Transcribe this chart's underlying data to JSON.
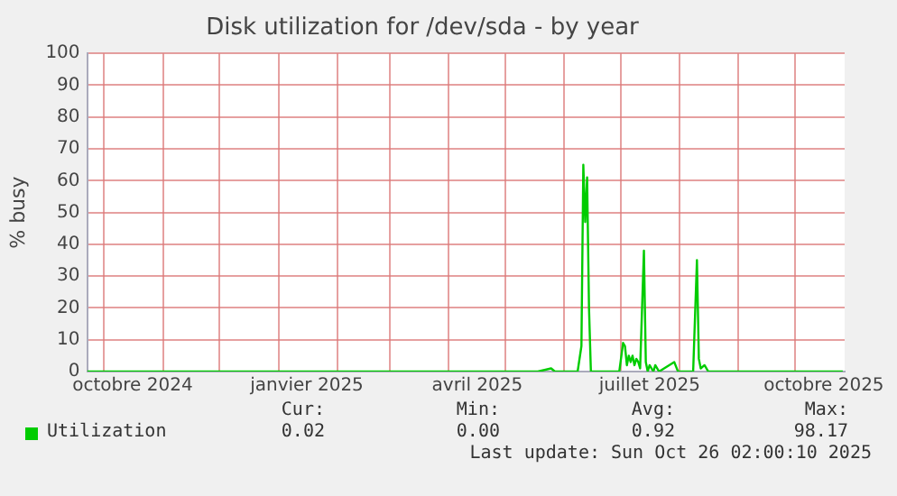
{
  "chart_data": {
    "type": "line",
    "title": "Disk utilization for /dev/sda - by year",
    "ylabel": "% busy",
    "x": [
      "2024-09-22",
      "2025-05-18",
      "2025-05-25",
      "2025-05-27",
      "2025-06-08",
      "2025-06-10",
      "2025-06-11",
      "2025-06-12",
      "2025-06-13",
      "2025-06-14",
      "2025-06-15",
      "2025-06-30",
      "2025-07-02",
      "2025-07-03",
      "2025-07-04",
      "2025-07-05",
      "2025-07-06",
      "2025-07-07",
      "2025-07-08",
      "2025-07-09",
      "2025-07-10",
      "2025-07-11",
      "2025-07-13",
      "2025-07-14",
      "2025-07-15",
      "2025-07-16",
      "2025-07-18",
      "2025-07-19",
      "2025-07-21",
      "2025-07-29",
      "2025-07-31",
      "2025-08-08",
      "2025-08-10",
      "2025-08-11",
      "2025-08-12",
      "2025-08-14",
      "2025-08-16",
      "2025-10-26"
    ],
    "series": [
      {
        "name": "Utilization",
        "color": "#00cc00",
        "values": [
          0,
          0,
          1,
          0,
          0,
          8,
          65,
          47,
          61,
          20,
          0,
          0,
          9,
          8,
          2,
          5,
          3,
          5,
          2,
          4,
          3,
          1,
          38,
          3,
          0,
          2,
          0,
          2,
          0,
          3,
          0,
          0,
          35,
          4,
          1,
          2,
          0,
          0
        ]
      }
    ],
    "xlim": [
      "2024-09-22",
      "2025-10-27"
    ],
    "xticks": [
      {
        "value": "2024-10-01",
        "label": null
      },
      {
        "value": "2024-10-16",
        "label": "octobre 2024"
      },
      {
        "value": "2024-11-01",
        "label": null
      },
      {
        "value": "2024-12-01",
        "label": null
      },
      {
        "value": "2025-01-01",
        "label": null
      },
      {
        "value": "2025-01-16",
        "label": "janvier 2025"
      },
      {
        "value": "2025-02-01",
        "label": null
      },
      {
        "value": "2025-03-01",
        "label": null
      },
      {
        "value": "2025-04-01",
        "label": null
      },
      {
        "value": "2025-04-16",
        "label": "avril 2025"
      },
      {
        "value": "2025-05-01",
        "label": null
      },
      {
        "value": "2025-06-01",
        "label": null
      },
      {
        "value": "2025-07-01",
        "label": null
      },
      {
        "value": "2025-07-16",
        "label": "juillet 2025"
      },
      {
        "value": "2025-08-01",
        "label": null
      },
      {
        "value": "2025-09-01",
        "label": null
      },
      {
        "value": "2025-10-01",
        "label": null
      },
      {
        "value": "2025-10-16",
        "label": "octobre 2025"
      }
    ],
    "ylim": [
      0,
      100
    ],
    "yticks": [
      0,
      10,
      20,
      30,
      40,
      50,
      60,
      70,
      80,
      90,
      100
    ],
    "grid": true,
    "legend": "bottom left",
    "marker": "none",
    "line_style": "solid",
    "annotations": [
      "Cur:",
      "Min:",
      "Avg:",
      "Max:",
      "0.02",
      "0.00",
      "0.92",
      "98.17",
      "Last update: Sun Oct 26 02:00:10 2025"
    ]
  }
}
